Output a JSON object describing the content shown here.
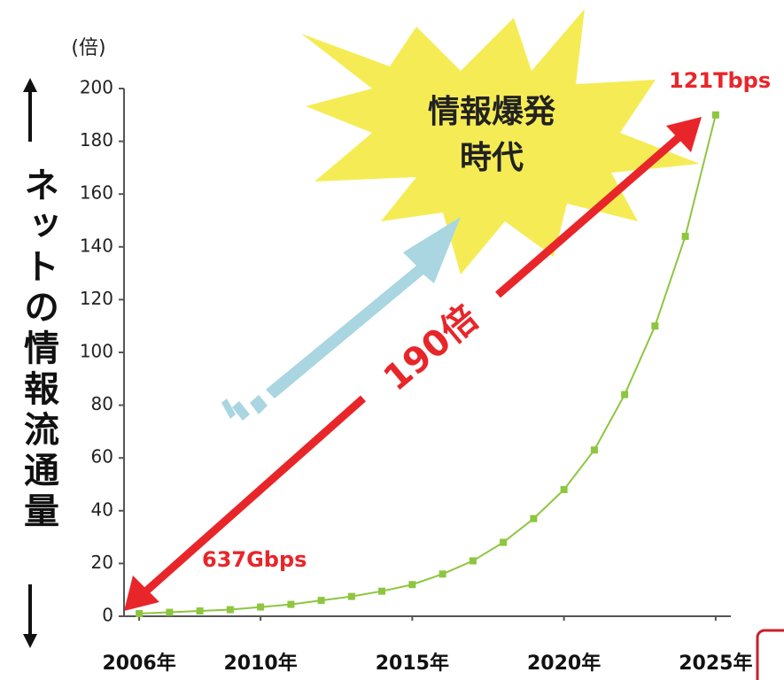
{
  "chart_data": {
    "type": "line",
    "y_unit": "(倍)",
    "ylabel": "ネットの情報流通量",
    "x": [
      2006,
      2007,
      2008,
      2009,
      2010,
      2011,
      2012,
      2013,
      2014,
      2015,
      2016,
      2017,
      2018,
      2019,
      2020,
      2021,
      2022,
      2023,
      2024,
      2025
    ],
    "series": [
      {
        "color": "#8dc63f",
        "values": [
          1,
          1.5,
          2,
          2.5,
          3.5,
          4.5,
          6,
          7.5,
          9.5,
          12,
          16,
          21,
          28,
          37,
          48,
          63,
          84,
          110,
          144,
          190
        ]
      }
    ],
    "xlim": [
      2005.5,
      2025.5
    ],
    "xticks": [
      {
        "value": 2006,
        "label": "2006年"
      },
      {
        "value": 2010,
        "label": "2010年"
      },
      {
        "value": 2015,
        "label": "2015年"
      },
      {
        "value": 2020,
        "label": "2020年"
      },
      {
        "value": 2025,
        "label": "2025年"
      }
    ],
    "ylim": [
      0,
      200
    ],
    "yticks": [
      0,
      20,
      40,
      60,
      80,
      100,
      120,
      140,
      160,
      180,
      200
    ],
    "grid": false,
    "annotations": [
      "情報爆発",
      "時代",
      "190倍",
      "637Gbps",
      "121Tbps"
    ]
  }
}
